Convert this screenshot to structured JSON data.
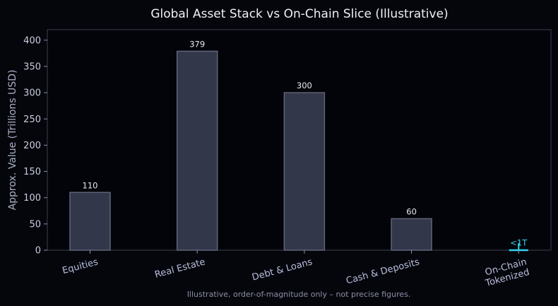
{
  "chart_data": {
    "type": "bar",
    "title": "Global Asset Stack vs On-Chain Slice (Illustrative)",
    "xlabel": "",
    "ylabel": "Approx. Value (Trillions USD)",
    "ylim": [
      0,
      420
    ],
    "yticks": [
      0,
      50,
      100,
      150,
      200,
      250,
      300,
      350,
      400
    ],
    "categories": [
      [
        "Equities"
      ],
      [
        "Real Estate"
      ],
      [
        "Debt & Loans"
      ],
      [
        "Cash & Deposits"
      ],
      [
        "On-Chain",
        "Tokenized"
      ]
    ],
    "values": [
      110,
      379,
      300,
      60,
      1
    ],
    "data_labels": [
      "110",
      "379",
      "300",
      "60",
      "<1T"
    ],
    "footnote": "Illustrative, order-of-magnitude only – not precise figures.",
    "grid": false,
    "colors": {
      "background": "#05060b",
      "plot_background": "#030409",
      "bar_fill": "#323749",
      "bar_edge": "#5f6478",
      "highlight": "#33d4f2",
      "axis": "#3a3e52"
    }
  }
}
